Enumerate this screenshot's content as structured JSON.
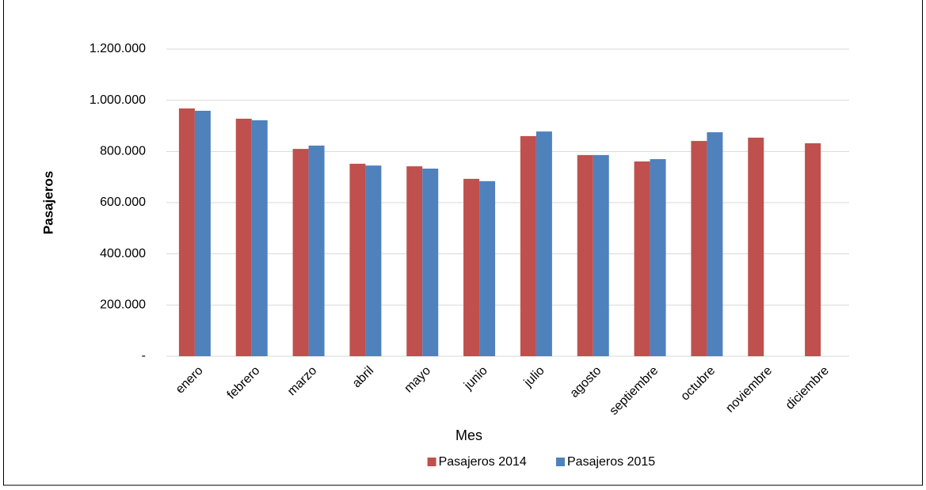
{
  "chart_data": {
    "type": "bar",
    "x_label": "Mes",
    "y_label": "Pasajeros",
    "categories": [
      "enero",
      "febrero",
      "marzo",
      "abril",
      "mayo",
      "junio",
      "julio",
      "agosto",
      "septiembre",
      "octubre",
      "noviembre",
      "diciembre"
    ],
    "series": [
      {
        "name": "Pasajeros 2014",
        "color": "#c0504d",
        "values": [
          968000,
          928000,
          810000,
          752000,
          742000,
          693000,
          860000,
          786000,
          761000,
          841000,
          854000,
          832000
        ]
      },
      {
        "name": "Pasajeros 2015",
        "color": "#4f81bd",
        "values": [
          959000,
          922000,
          823000,
          745000,
          733000,
          684000,
          878000,
          786000,
          770000,
          875000,
          null,
          null
        ]
      }
    ],
    "ylim": [
      0,
      1200000
    ],
    "yticks": [
      {
        "value": 0,
        "label": "-"
      },
      {
        "value": 200000,
        "label": "200.000"
      },
      {
        "value": 400000,
        "label": "400.000"
      },
      {
        "value": 600000,
        "label": "600.000"
      },
      {
        "value": 800000,
        "label": "800.000"
      },
      {
        "value": 1000000,
        "label": "1.000.000"
      },
      {
        "value": 1200000,
        "label": "1.200.000"
      }
    ],
    "grid": true,
    "legend": "bottom"
  }
}
